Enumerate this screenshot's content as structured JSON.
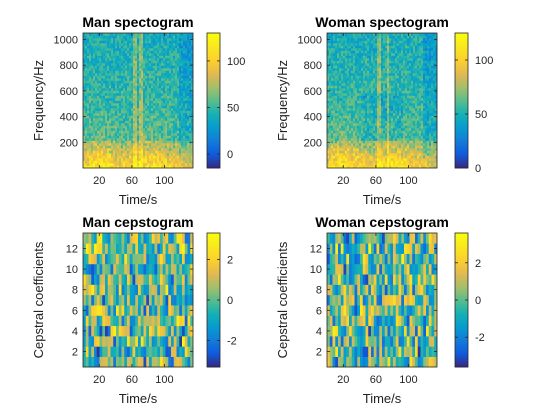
{
  "chart_data": [
    {
      "type": "heatmap",
      "title": "Man spectogram",
      "xlabel": "Time/s",
      "ylabel": "Frequency/Hz",
      "xlim": [
        0,
        135
      ],
      "ylim": [
        0,
        1050
      ],
      "xticks": [
        "20",
        "60",
        "100"
      ],
      "yticks": [
        "200",
        "400",
        "600",
        "800",
        "1000"
      ],
      "colorbar": {
        "range": [
          -15,
          130
        ],
        "ticks": [
          "0",
          "50",
          "100"
        ]
      },
      "colormap": "parula",
      "pattern": "spectrogram"
    },
    {
      "type": "heatmap",
      "title": "Woman spectogram",
      "xlabel": "Time/s",
      "ylabel": "Frequency/Hz",
      "xlim": [
        0,
        135
      ],
      "ylim": [
        0,
        1050
      ],
      "xticks": [
        "20",
        "60",
        "100"
      ],
      "yticks": [
        "200",
        "400",
        "600",
        "800",
        "1000"
      ],
      "colorbar": {
        "range": [
          0,
          125
        ],
        "ticks": [
          "0",
          "50",
          "100"
        ]
      },
      "colormap": "parula",
      "pattern": "spectrogram"
    },
    {
      "type": "heatmap",
      "title": "Man cepstogram",
      "xlabel": "Time/s",
      "ylabel": "Cepstral coefficients",
      "xlim": [
        0,
        135
      ],
      "ylim": [
        0.5,
        13.5
      ],
      "xticks": [
        "20",
        "60",
        "100"
      ],
      "yticks": [
        "2",
        "4",
        "6",
        "8",
        "10",
        "12"
      ],
      "colorbar": {
        "range": [
          -3.3,
          3.3
        ],
        "ticks": [
          "-2",
          "0",
          "2"
        ]
      },
      "colormap": "parula",
      "pattern": "cepstrogram"
    },
    {
      "type": "heatmap",
      "title": "Woman cepstogram",
      "xlabel": "Time/s",
      "ylabel": "Cepstral coefficients",
      "xlim": [
        0,
        135
      ],
      "ylim": [
        0.5,
        13.5
      ],
      "xticks": [
        "20",
        "60",
        "100"
      ],
      "yticks": [
        "2",
        "4",
        "6",
        "8",
        "10",
        "12"
      ],
      "colorbar": {
        "range": [
          -3.6,
          3.6
        ],
        "ticks": [
          "-2",
          "0",
          "2"
        ]
      },
      "colormap": "parula",
      "pattern": "cepstrogram"
    }
  ]
}
